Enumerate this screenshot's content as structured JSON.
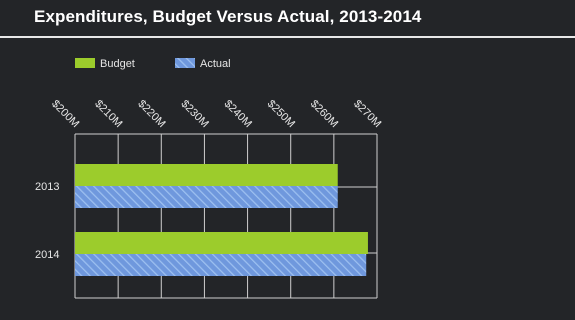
{
  "title": "Expenditures, Budget Versus Actual, 2013-2014",
  "colors": {
    "background": "#232528",
    "budget": "#9ccc2c",
    "actual": "#6f98dd",
    "actual_hatch": "#9dc0f0",
    "grid": "#cfcfcf",
    "text": "#e6e6e6"
  },
  "chart_data": {
    "type": "bar",
    "orientation": "horizontal",
    "title": "Expenditures, Budget Versus Actual, 2013-2014",
    "categories": [
      "2013",
      "2014"
    ],
    "series": [
      {
        "name": "Budget",
        "values": [
          260.9,
          267.9
        ]
      },
      {
        "name": "Actual",
        "values": [
          260.9,
          267.5
        ]
      }
    ],
    "xlim": [
      200,
      270
    ],
    "xticks": [
      200,
      210,
      220,
      230,
      240,
      250,
      260,
      270
    ],
    "xtick_labels": [
      "$200M",
      "$210M",
      "$220M",
      "$230M",
      "$240M",
      "$250M",
      "$260M",
      "$270M"
    ],
    "xaxis_position": "top",
    "grid": true,
    "legend": [
      "Budget",
      "Actual"
    ],
    "legend_position": "top-left"
  }
}
